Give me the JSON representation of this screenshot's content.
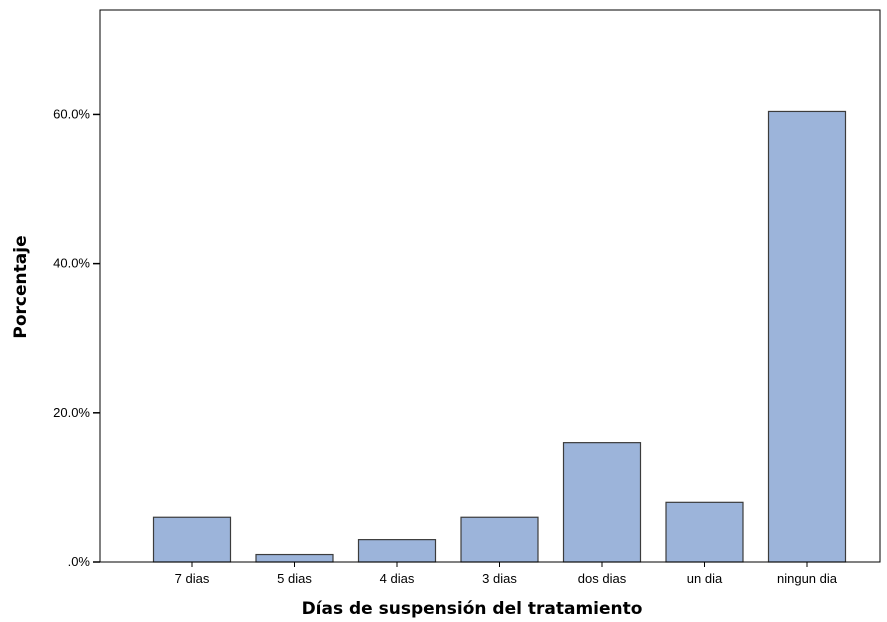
{
  "chart_data": {
    "type": "bar",
    "title": "",
    "xlabel": "Días de suspensión del tratamiento",
    "ylabel": "Porcentaje",
    "categories": [
      "7 dias",
      "5 dias",
      "4 dias",
      "3 dias",
      "dos dias",
      "un dia",
      "ningun dia"
    ],
    "values": [
      6.0,
      1.0,
      3.0,
      6.0,
      16.0,
      8.0,
      60.4
    ],
    "ylim": [
      0,
      74
    ],
    "yticks": [
      0,
      20,
      40,
      60
    ],
    "ytick_labels": [
      ".0%",
      "20.0%",
      "40.0%",
      "60.0%"
    ],
    "grid": false,
    "legend": "none",
    "bar_color": "#9cb4da",
    "bar_edge_color": "#3c3c3c"
  }
}
